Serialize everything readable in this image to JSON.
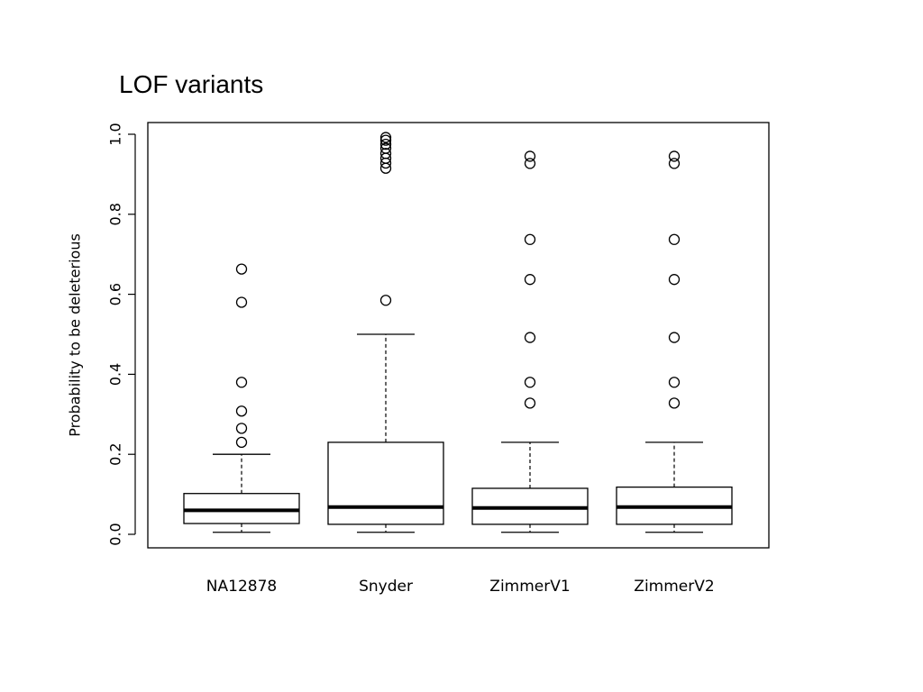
{
  "slide": {
    "title": "LOF variants"
  },
  "chart_data": {
    "type": "boxplot",
    "ylabel": "Probability to be deleterious",
    "xlabel": "",
    "ylim": [
      0.0,
      1.0
    ],
    "yticks": [
      0.0,
      0.2,
      0.4,
      0.6,
      0.8,
      1.0
    ],
    "ytick_labels": [
      "0.0",
      "0.2",
      "0.4",
      "0.6",
      "0.8",
      "1.0"
    ],
    "grid": false,
    "categories": [
      "NA12878",
      "Snyder",
      "ZimmerV1",
      "ZimmerV2"
    ],
    "boxes": [
      {
        "label": "NA12878",
        "whisker_low": 0.005,
        "q1": 0.027,
        "median": 0.06,
        "q3": 0.102,
        "whisker_high": 0.2,
        "outliers": [
          0.23,
          0.265,
          0.308,
          0.38,
          0.58,
          0.663
        ]
      },
      {
        "label": "Snyder",
        "whisker_low": 0.005,
        "q1": 0.025,
        "median": 0.068,
        "q3": 0.23,
        "whisker_high": 0.5,
        "outliers": [
          0.585,
          0.915,
          0.928,
          0.94,
          0.952,
          0.965,
          0.975,
          0.985,
          0.992
        ]
      },
      {
        "label": "ZimmerV1",
        "whisker_low": 0.005,
        "q1": 0.025,
        "median": 0.066,
        "q3": 0.115,
        "whisker_high": 0.23,
        "outliers": [
          0.328,
          0.38,
          0.492,
          0.637,
          0.737,
          0.927,
          0.945
        ]
      },
      {
        "label": "ZimmerV2",
        "whisker_low": 0.005,
        "q1": 0.025,
        "median": 0.068,
        "q3": 0.118,
        "whisker_high": 0.23,
        "outliers": [
          0.328,
          0.38,
          0.492,
          0.637,
          0.737,
          0.927,
          0.945
        ]
      }
    ],
    "colors": {
      "box_fill": "#ffffff",
      "stroke": "#000000"
    }
  }
}
